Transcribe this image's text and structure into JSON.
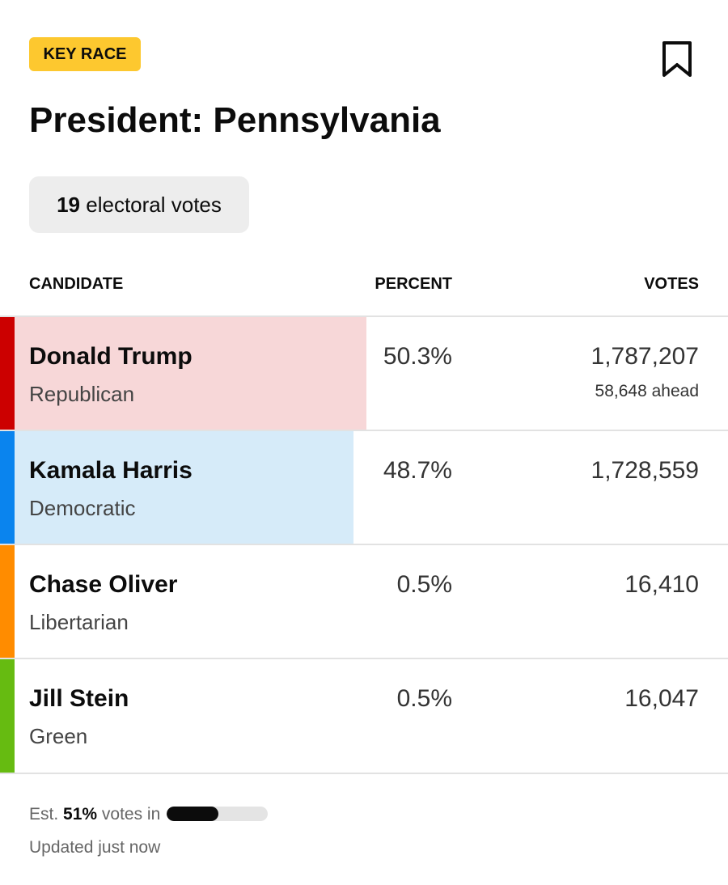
{
  "header": {
    "badge": "KEY RACE",
    "title": "President: Pennsylvania"
  },
  "electoral": {
    "count": "19",
    "label": "electoral votes"
  },
  "table": {
    "columns": [
      "CANDIDATE",
      "PERCENT",
      "VOTES"
    ],
    "rows": [
      {
        "name": "Donald Trump",
        "party": "Republican",
        "percent": "50.3%",
        "votes": "1,787,207",
        "note": "58,648 ahead",
        "color": "#cc0000",
        "shade": "#f7d7d8"
      },
      {
        "name": "Kamala Harris",
        "party": "Democratic",
        "percent": "48.7%",
        "votes": "1,728,559",
        "color": "#0a84ee",
        "shade": "#d6ebf9"
      },
      {
        "name": "Chase Oliver",
        "party": "Libertarian",
        "percent": "0.5%",
        "votes": "16,410",
        "color": "#ff8c00"
      },
      {
        "name": "Jill Stein",
        "party": "Green",
        "percent": "0.5%",
        "votes": "16,047",
        "color": "#66bb11"
      }
    ]
  },
  "footer": {
    "est": "Est.",
    "share": "51%",
    "suffix": "votes in",
    "updated": "Updated just now"
  }
}
